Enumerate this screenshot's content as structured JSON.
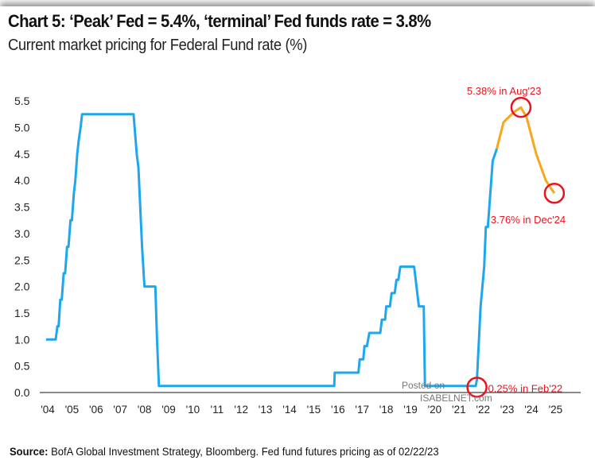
{
  "chart_data": {
    "type": "line",
    "title": "Chart 5: ‘Peak’ Fed = 5.4%, ‘terminal’ Fed funds rate = 3.8%",
    "subtitle": "Current market pricing for Federal Fund rate (%)",
    "xlabel": "",
    "ylabel": "",
    "xlim": [
      2003.9,
      2025.5
    ],
    "ylim": [
      0,
      5.5
    ],
    "grid": false,
    "y_ticks": [
      "0.0",
      "0.5",
      "1.0",
      "1.5",
      "2.0",
      "2.5",
      "3.0",
      "3.5",
      "4.0",
      "4.5",
      "5.0",
      "5.5"
    ],
    "x_ticks": [
      "'04",
      "'05",
      "'06",
      "'07",
      "'08",
      "'09",
      "'10",
      "'11",
      "'12",
      "'13",
      "'14",
      "'15",
      "'16",
      "'17",
      "'18",
      "'19",
      "'20",
      "'21",
      "'22",
      "'23",
      "'24",
      "'25"
    ],
    "series": [
      {
        "role": "historical",
        "color": "#1ea7ef",
        "points": [
          [
            2003.93,
            1.0
          ],
          [
            2004.33,
            1.0
          ],
          [
            2004.4,
            1.25
          ],
          [
            2004.45,
            1.25
          ],
          [
            2004.52,
            1.75
          ],
          [
            2004.58,
            1.75
          ],
          [
            2004.66,
            2.25
          ],
          [
            2004.72,
            2.25
          ],
          [
            2004.8,
            2.75
          ],
          [
            2004.86,
            2.75
          ],
          [
            2004.94,
            3.25
          ],
          [
            2005.0,
            3.25
          ],
          [
            2005.08,
            3.75
          ],
          [
            2005.14,
            4.0
          ],
          [
            2005.22,
            4.5
          ],
          [
            2005.28,
            4.75
          ],
          [
            2005.36,
            5.0
          ],
          [
            2005.42,
            5.25
          ],
          [
            2007.55,
            5.25
          ],
          [
            2007.68,
            4.5
          ],
          [
            2007.75,
            4.25
          ],
          [
            2007.9,
            2.75
          ],
          [
            2008.0,
            2.0
          ],
          [
            2008.45,
            2.0
          ],
          [
            2008.52,
            1.0
          ],
          [
            2008.6,
            0.125
          ],
          [
            2015.85,
            0.125
          ],
          [
            2015.87,
            0.375
          ],
          [
            2016.85,
            0.375
          ],
          [
            2016.9,
            0.625
          ],
          [
            2017.05,
            0.625
          ],
          [
            2017.1,
            0.875
          ],
          [
            2017.2,
            0.875
          ],
          [
            2017.3,
            1.125
          ],
          [
            2017.75,
            1.125
          ],
          [
            2017.82,
            1.375
          ],
          [
            2017.95,
            1.375
          ],
          [
            2018.0,
            1.625
          ],
          [
            2018.15,
            1.625
          ],
          [
            2018.22,
            1.875
          ],
          [
            2018.35,
            1.875
          ],
          [
            2018.42,
            2.125
          ],
          [
            2018.5,
            2.125
          ],
          [
            2018.58,
            2.375
          ],
          [
            2019.15,
            2.375
          ],
          [
            2019.35,
            1.625
          ],
          [
            2019.55,
            1.625
          ],
          [
            2019.6,
            0.125
          ],
          [
            2021.7,
            0.125
          ],
          [
            2021.75,
            0.25
          ],
          [
            2021.9,
            1.625
          ],
          [
            2022.05,
            2.375
          ],
          [
            2022.12,
            3.125
          ],
          [
            2022.2,
            3.125
          ],
          [
            2022.4,
            4.375
          ],
          [
            2022.5,
            4.5
          ],
          [
            2022.57,
            4.6
          ]
        ]
      },
      {
        "role": "market pricing",
        "color": "#f5a81c",
        "points": [
          [
            2022.57,
            4.6
          ],
          [
            2022.85,
            5.1
          ],
          [
            2023.3,
            5.3
          ],
          [
            2023.57,
            5.38
          ],
          [
            2023.8,
            5.2
          ],
          [
            2024.2,
            4.5
          ],
          [
            2024.6,
            4.0
          ],
          [
            2024.95,
            3.76
          ]
        ]
      }
    ],
    "annotations": [
      {
        "text": "5.38% in Aug'23",
        "x": 2023.57,
        "y": 5.38
      },
      {
        "text": "3.76% in Dec'24",
        "x": 2024.95,
        "y": 3.76
      },
      {
        "text": "0.25% in Feb'22",
        "x": 2021.75,
        "y": 0.1
      }
    ],
    "annotation_color": "#e8141c"
  },
  "source": {
    "label": "Source:",
    "text": " BofA Global Investment Strategy, Bloomberg. Fed fund futures pricing as of 02/22/23"
  },
  "watermark": {
    "line1": "Posted on",
    "line2": "ISABELNET.com"
  }
}
